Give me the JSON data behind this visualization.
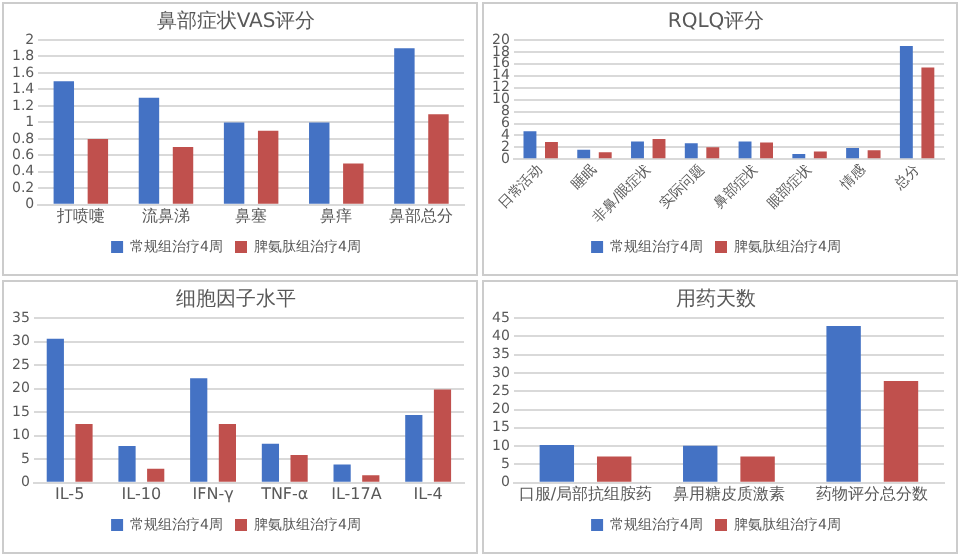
{
  "chart_data": [
    {
      "type": "bar",
      "title": "鼻部症状VAS评分",
      "categories": [
        "打喷嚏",
        "流鼻涕",
        "鼻塞",
        "鼻痒",
        "鼻部总分"
      ],
      "series": [
        {
          "name": "常规组治疗4周",
          "color": "#4472c4",
          "values": [
            1.5,
            1.3,
            1.0,
            1.0,
            1.9
          ]
        },
        {
          "name": "脾氨肽组治疗4周",
          "color": "#c0504d",
          "values": [
            0.8,
            0.7,
            0.9,
            0.5,
            1.1
          ]
        }
      ],
      "ylim": [
        0,
        2
      ],
      "yticks": [
        0,
        0.2,
        0.4,
        0.6,
        0.8,
        1,
        1.2,
        1.4,
        1.6,
        1.8,
        2
      ],
      "grid": "y",
      "legend": "bottom"
    },
    {
      "type": "bar",
      "title": "RQLQ评分",
      "categories": [
        "日常活动",
        "睡眠",
        "非鼻/眼症状",
        "实际问题",
        "鼻部症状",
        "眼部症状",
        "情感",
        "总分"
      ],
      "series": [
        {
          "name": "常规组治疗4周",
          "color": "#4472c4",
          "values": [
            4.7,
            1.6,
            3.0,
            2.7,
            3.0,
            0.9,
            1.9,
            19
          ]
        },
        {
          "name": "脾氨肽组治疗4周",
          "color": "#c0504d",
          "values": [
            2.9,
            1.2,
            3.4,
            2.0,
            2.8,
            1.3,
            1.5,
            15.4
          ]
        }
      ],
      "ylim": [
        0,
        20
      ],
      "yticks": [
        0,
        2,
        4,
        6,
        8,
        10,
        12,
        14,
        16,
        18,
        20
      ],
      "grid": "y",
      "legend": "bottom"
    },
    {
      "type": "bar",
      "title": "细胞因子水平",
      "categories": [
        "IL-5",
        "IL-10",
        "IFN-γ",
        "TNF-α",
        "IL-17A",
        "IL-4"
      ],
      "series": [
        {
          "name": "常规组治疗4周",
          "color": "#4472c4",
          "values": [
            30.6,
            7.8,
            22.2,
            8.3,
            3.9,
            14.4
          ]
        },
        {
          "name": "脾氨肽组治疗4周",
          "color": "#c0504d",
          "values": [
            12.5,
            3.0,
            12.5,
            5.9,
            1.6,
            19.8
          ]
        }
      ],
      "ylim": [
        0,
        35
      ],
      "yticks": [
        0,
        5,
        10,
        15,
        20,
        25,
        30,
        35
      ],
      "grid": "y",
      "legend": "bottom"
    },
    {
      "type": "bar",
      "title": "用药天数",
      "categories": [
        "口服/局部抗组胺药",
        "鼻用糖皮质激素",
        "药物评分总分数"
      ],
      "series": [
        {
          "name": "常规组治疗4周",
          "color": "#4472c4",
          "values": [
            10.3,
            10.1,
            42.8
          ]
        },
        {
          "name": "脾氨肽组治疗4周",
          "color": "#c0504d",
          "values": [
            7.2,
            7.2,
            27.8
          ]
        }
      ],
      "ylim": [
        0,
        45
      ],
      "yticks": [
        0,
        5,
        10,
        15,
        20,
        25,
        30,
        35,
        40,
        45
      ],
      "grid": "y",
      "legend": "bottom"
    }
  ]
}
